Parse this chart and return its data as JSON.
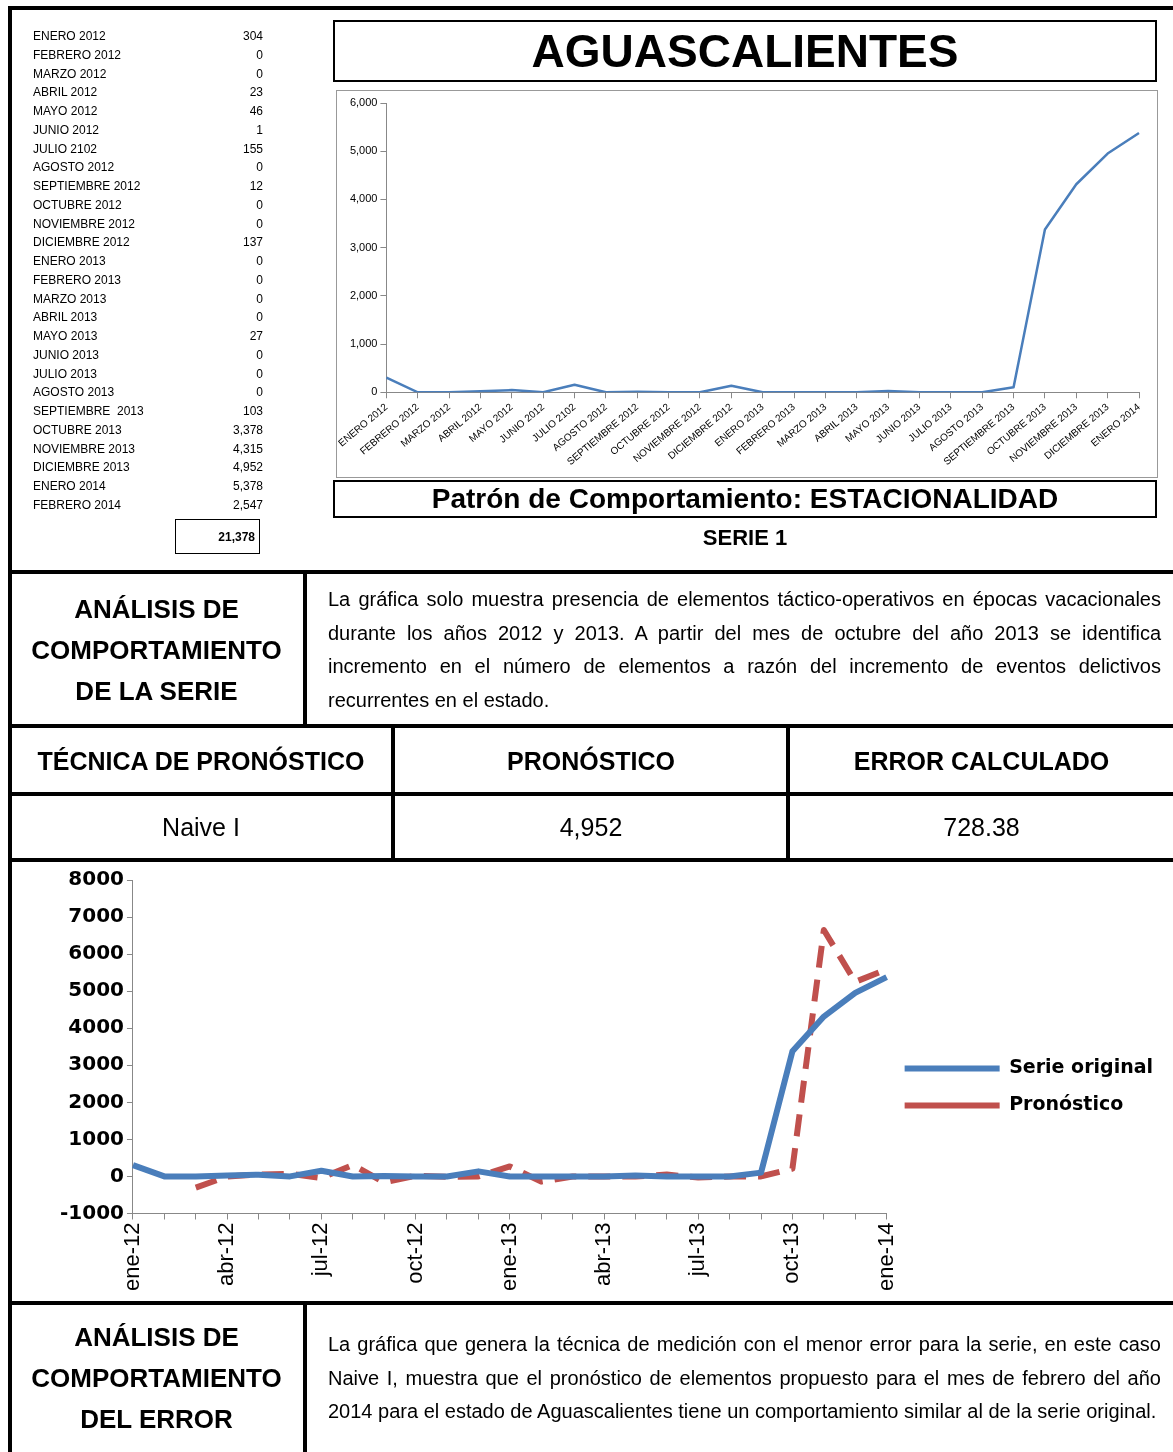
{
  "chart_data": [
    {
      "type": "other",
      "annotations": [
        "ENERO 2012",
        "304",
        "FEBRERO 2012",
        "0",
        "MARZO 2012",
        "0",
        "ABRIL 2012",
        "23",
        "MAYO 2012",
        "46",
        "JUNIO 2012",
        "1",
        "JULIO 2102",
        "155",
        "AGOSTO 2012",
        "0",
        "SEPTIEMBRE 2012",
        "12",
        "OCTUBRE 2012",
        "0",
        "NOVIEMBRE 2012",
        "0",
        "DICIEMBRE 2012",
        "137",
        "ENERO 2013",
        "0",
        "FEBRERO 2013",
        "0",
        "MARZO 2013",
        "0",
        "ABRIL 2013",
        "0",
        "MAYO 2013",
        "27",
        "JUNIO 2013",
        "0",
        "JULIO 2013",
        "0",
        "AGOSTO 2013",
        "0",
        "SEPTIEMBRE  2013",
        "103",
        "OCTUBRE 2013",
        "3,378",
        "NOVIEMBRE 2013",
        "4,315",
        "DICIEMBRE 2013",
        "4,952",
        "ENERO 2014",
        "5,378",
        "FEBRERO 2014",
        "2,547",
        "21,378"
      ]
    },
    {
      "type": "line",
      "title": "AGUASCALIENTES",
      "annotations": [
        "Patrón de Comportamiento: ESTACIONALIDAD",
        "SERIE 1"
      ],
      "categories": [
        "ENERO 2012",
        "FEBRERO 2012",
        "MARZO 2012",
        "ABRIL 2012",
        "MAYO 2012",
        "JUNIO 2012",
        "JULIO 2102",
        "AGOSTO 2012",
        "SEPTIEMBRE 2012",
        "OCTUBRE 2012",
        "NOVIEMBRE 2012",
        "DICIEMBRE 2012",
        "ENERO 2013",
        "FEBRERO 2013",
        "MARZO 2013",
        "ABRIL 2013",
        "MAYO 2013",
        "JUNIO 2013",
        "JULIO 2013",
        "AGOSTO 2013",
        "SEPTIEMBRE 2013",
        "OCTUBRE 2013",
        "NOVIEMBRE 2013",
        "DICIEMBRE 2013",
        "ENERO 2014"
      ],
      "values": [
        304,
        0,
        0,
        23,
        46,
        1,
        155,
        0,
        12,
        0,
        0,
        137,
        0,
        0,
        0,
        0,
        27,
        0,
        0,
        0,
        103,
        3378,
        4315,
        4952,
        5378
      ],
      "color": "#4a7ebb",
      "ylim": [
        0,
        6000
      ],
      "yticks": [
        {
          "value": 0,
          "label": "0"
        },
        {
          "value": 1000,
          "label": "1,000"
        },
        {
          "value": 2000,
          "label": "2,000"
        },
        {
          "value": 3000,
          "label": "3,000"
        },
        {
          "value": 4000,
          "label": "4,000"
        },
        {
          "value": 5000,
          "label": "5,000"
        },
        {
          "value": 6000,
          "label": "6,000"
        }
      ],
      "grid": false,
      "legend": false
    },
    {
      "type": "other",
      "annotations": [
        "ANÁLISIS DE COMPORTAMIENTO DE LA SERIE",
        "La gráfica solo muestra presencia de elementos táctico-operativos en épocas vacacionales durante los años 2012 y 2013. A partir del mes de octubre del año 2013 se identifica incremento en el número de elementos a razón del incremento de eventos delictivos recurrentes en el estado.",
        "TÉCNICA DE PRONÓSTICO",
        "PRONÓSTICO",
        "ERROR CALCULADO",
        "Naive I",
        "4,952",
        "728.38"
      ]
    },
    {
      "type": "line",
      "categories": [
        "ene-12",
        null,
        null,
        "abr-12",
        null,
        null,
        "jul-12",
        null,
        null,
        "oct-12",
        null,
        null,
        "ene-13",
        null,
        null,
        "abr-13",
        null,
        null,
        "jul-13",
        null,
        null,
        "oct-13",
        null,
        null,
        "ene-14"
      ],
      "series": [
        {
          "name": "Serie original",
          "color": "#4a7ebb",
          "line_style": "solid",
          "values": [
            304,
            0,
            0,
            23,
            46,
            1,
            155,
            0,
            12,
            0,
            0,
            137,
            0,
            0,
            0,
            0,
            27,
            0,
            0,
            0,
            103,
            3378,
            4315,
            4952,
            5378
          ]
        },
        {
          "name": "Pronóstico",
          "color": "#c0504d",
          "line_style": "dashed",
          "values": [
            null,
            null,
            -300,
            0,
            50,
            70,
            -40,
            310,
            -160,
            20,
            -10,
            0,
            270,
            -140,
            0,
            0,
            0,
            50,
            -30,
            0,
            0,
            210,
            6650,
            5250,
            5590
          ]
        }
      ],
      "ylim": [
        -1000,
        8000
      ],
      "yticks": [
        -1000,
        0,
        1000,
        2000,
        3000,
        4000,
        5000,
        6000,
        7000,
        8000
      ],
      "grid": false,
      "legend": "right"
    },
    {
      "type": "other",
      "annotations": [
        "ANÁLISIS DE COMPORTAMIENTO DEL ERROR",
        "La gráfica que genera la técnica de medición con el menor error para la serie, en este caso Naive I, muestra que el pronóstico de elementos propuesto para el mes de febrero del año 2014 para el estado de Aguascalientes tiene un comportamiento similar al de la serie original."
      ]
    }
  ]
}
